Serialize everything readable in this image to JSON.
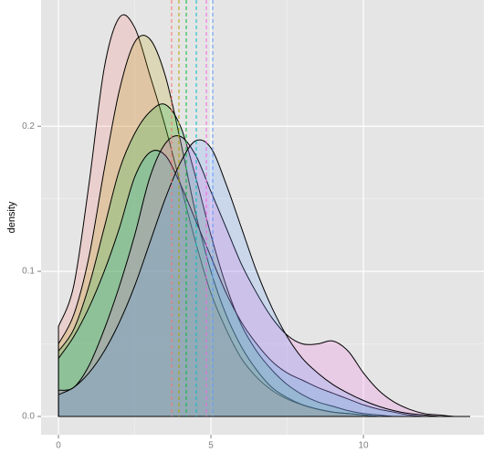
{
  "chart_data": {
    "type": "density",
    "y_label": "density",
    "xlim": [
      -0.57,
      13.95
    ],
    "ylim": [
      -0.0126,
      0.287
    ],
    "xticks": [
      0,
      5,
      10
    ],
    "yticks": [
      {
        "value": 0,
        "label": "0.0"
      },
      0.1,
      0.2
    ],
    "grid": true,
    "x": [
      0,
      0.5,
      1,
      1.5,
      2,
      2.5,
      3,
      3.5,
      4,
      4.5,
      5,
      5.5,
      6,
      6.5,
      7,
      7.5,
      8,
      8.5,
      9,
      9.5,
      10,
      10.5,
      11,
      11.5,
      12,
      12.5,
      13,
      13.5
    ],
    "series": [
      {
        "color": "#F8766D",
        "mean": 3.71,
        "values": [
          0.062,
          0.09,
          0.16,
          0.24,
          0.275,
          0.268,
          0.235,
          0.2,
          0.16,
          0.12,
          0.085,
          0.06,
          0.04,
          0.027,
          0.018,
          0.012,
          0.008,
          0.005,
          0.003,
          0.002,
          0.001,
          0,
          0,
          0,
          0,
          0,
          0,
          0
        ]
      },
      {
        "color": "#B79F00",
        "mean": 3.95,
        "values": [
          0.05,
          0.07,
          0.11,
          0.17,
          0.225,
          0.258,
          0.26,
          0.235,
          0.19,
          0.14,
          0.1,
          0.07,
          0.048,
          0.032,
          0.02,
          0.013,
          0.008,
          0.005,
          0.003,
          0.002,
          0.001,
          0,
          0,
          0,
          0,
          0,
          0,
          0
        ]
      },
      {
        "color": "#00BA38",
        "mean": 4.19,
        "values": [
          0.045,
          0.06,
          0.09,
          0.13,
          0.17,
          0.195,
          0.21,
          0.215,
          0.2,
          0.165,
          0.125,
          0.09,
          0.063,
          0.045,
          0.032,
          0.022,
          0.015,
          0.01,
          0.007,
          0.004,
          0.002,
          0.001,
          0,
          0,
          0,
          0,
          0,
          0
        ]
      },
      {
        "color": "#00BFC4",
        "mean": 4.52,
        "values": [
          0.04,
          0.055,
          0.075,
          0.1,
          0.13,
          0.165,
          0.182,
          0.18,
          0.16,
          0.135,
          0.11,
          0.085,
          0.065,
          0.05,
          0.038,
          0.03,
          0.025,
          0.02,
          0.016,
          0.012,
          0.008,
          0.005,
          0.003,
          0.001,
          0,
          0,
          0,
          0
        ]
      },
      {
        "color": "#F564E3",
        "mean": 4.85,
        "values": [
          0.018,
          0.02,
          0.035,
          0.06,
          0.09,
          0.125,
          0.165,
          0.188,
          0.193,
          0.18,
          0.155,
          0.13,
          0.105,
          0.085,
          0.068,
          0.056,
          0.05,
          0.05,
          0.052,
          0.045,
          0.03,
          0.018,
          0.01,
          0.005,
          0.002,
          0.001,
          0,
          0
        ]
      },
      {
        "color": "#619CFF",
        "mean": 5.06,
        "values": [
          0.015,
          0.02,
          0.03,
          0.045,
          0.065,
          0.09,
          0.12,
          0.15,
          0.175,
          0.19,
          0.185,
          0.16,
          0.13,
          0.1,
          0.075,
          0.055,
          0.04,
          0.03,
          0.022,
          0.016,
          0.011,
          0.007,
          0.004,
          0.002,
          0.001,
          0,
          0,
          0
        ]
      }
    ]
  }
}
